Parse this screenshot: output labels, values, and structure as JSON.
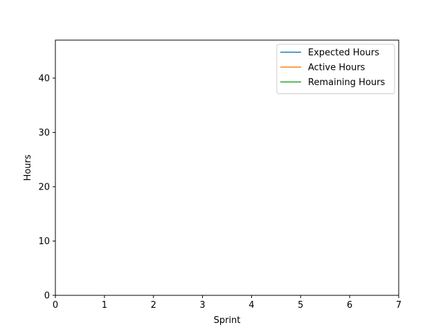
{
  "chart_data": {
    "type": "line",
    "title": "",
    "xlabel": "Sprint",
    "ylabel": "Hours",
    "xlim": [
      0,
      7
    ],
    "ylim": [
      0,
      47
    ],
    "xticks": [
      "0",
      "1",
      "2",
      "3",
      "4",
      "5",
      "6",
      "7"
    ],
    "yticks": [
      "0",
      "10",
      "20",
      "30",
      "40"
    ],
    "grid": false,
    "legend_position": "upper-right",
    "series": [
      {
        "name": "Expected Hours",
        "color": "#1f77b4",
        "x": [],
        "y": []
      },
      {
        "name": "Active Hours",
        "color": "#ff7f0e",
        "x": [],
        "y": []
      },
      {
        "name": "Remaining Hours",
        "color": "#2ca02c",
        "x": [],
        "y": []
      }
    ]
  }
}
